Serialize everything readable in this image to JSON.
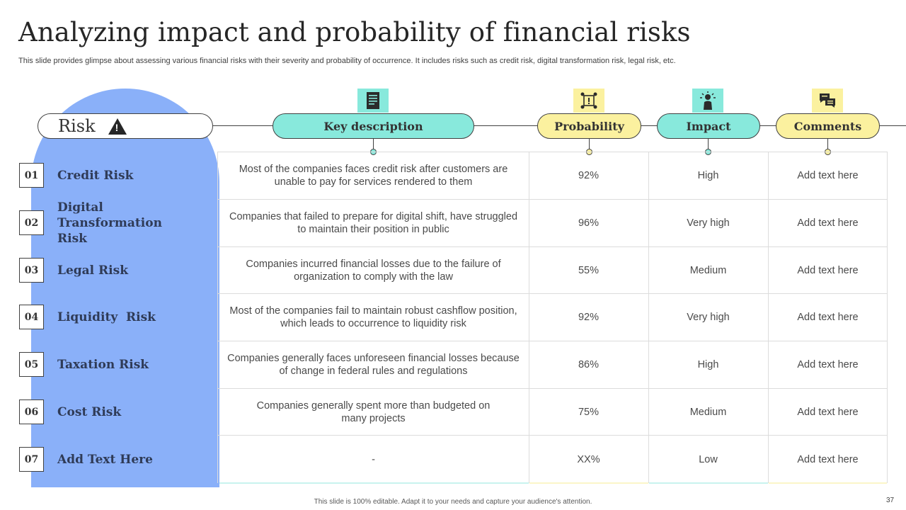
{
  "title": "Analyzing impact and probability of financial risks",
  "subtitle": "This slide provides glimpse about assessing various financial risks with their severity and probability of occurrence. It includes risks such as credit risk, digital transformation risk, legal risk, etc.",
  "headers": {
    "risk": "Risk",
    "risk_symbol": "!",
    "description": "Key description",
    "probability": "Probability",
    "impact": "Impact",
    "comments": "Comments"
  },
  "colors": {
    "arch": "#8ab0f9",
    "teal": "#88e9dc",
    "yellow": "#fbf19f"
  },
  "icons": [
    "document-icon",
    "alert-network-icon",
    "idea-person-icon",
    "chat-bubbles-icon",
    "warning-icon"
  ],
  "rows": [
    {
      "num": "01",
      "name": "Credit Risk",
      "description": "Most of the companies faces credit risk after customers are unable to pay for services rendered to them",
      "probability": "92%",
      "impact": "High",
      "comment": "Add text here"
    },
    {
      "num": "02",
      "name": "Digital Transformation Risk",
      "description": "Companies that failed to prepare for digital shift, have struggled to maintain their position in public",
      "probability": "96%",
      "impact": "Very high",
      "comment": "Add text here"
    },
    {
      "num": "03",
      "name": "Legal Risk",
      "description": "Companies incurred financial losses due to the failure of organization to comply with the law",
      "probability": "55%",
      "impact": "Medium",
      "comment": "Add text here"
    },
    {
      "num": "04",
      "name": "Liquidity  Risk",
      "description": "Most of the companies fail to maintain robust cashflow position, which leads to occurrence to liquidity risk",
      "probability": "92%",
      "impact": "Very high",
      "comment": "Add text here"
    },
    {
      "num": "05",
      "name": "Taxation Risk",
      "description": "Companies generally faces unforeseen financial losses because of change in federal rules and regulations",
      "probability": "86%",
      "impact": "High",
      "comment": "Add text here"
    },
    {
      "num": "06",
      "name": "Cost Risk",
      "description": "Companies generally spent more than budgeted on many projects",
      "probability": "75%",
      "impact": "Medium",
      "comment": "Add text here"
    },
    {
      "num": "07",
      "name": "Add Text Here",
      "description": "-",
      "probability": "XX%",
      "impact": "Low",
      "comment": "Add text here"
    }
  ],
  "footer": "This slide is 100% editable. Adapt it to your needs and capture your audience's attention.",
  "page_number": "37"
}
